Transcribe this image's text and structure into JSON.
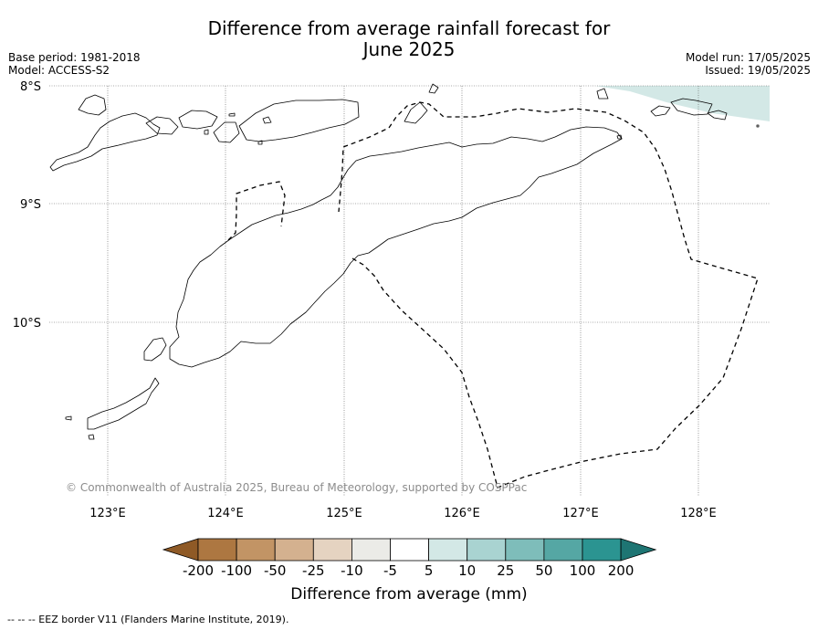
{
  "title_line1": "Difference from average rainfall forecast for",
  "title_line2": "June 2025",
  "meta": {
    "base_period": "Base period: 1981-2018",
    "model": "Model: ACCESS-S2",
    "model_run": "Model run: 17/05/2025",
    "issued": "Issued: 19/05/2025"
  },
  "map": {
    "lat_labels": [
      "8°S",
      "9°S",
      "10°S"
    ],
    "lon_labels": [
      "123°E",
      "124°E",
      "125°E",
      "126°E",
      "127°E",
      "128°E"
    ],
    "grid": true
  },
  "copyright": "© Commonwealth of Australia 2025, Bureau of Meteorology, supported by COSPPac",
  "colorbar": {
    "title": "Difference from average (mm)",
    "tick_labels": [
      "-200",
      "-100",
      "-50",
      "-25",
      "-10",
      "-5",
      "5",
      "10",
      "25",
      "50",
      "100",
      "200"
    ],
    "colors": [
      "#8f5a26",
      "#ad7741",
      "#c29465",
      "#d4b18f",
      "#e5d3c1",
      "#ebebe7",
      "#ffffff",
      "#d3e8e6",
      "#a9d3d1",
      "#7ebdba",
      "#55a7a4",
      "#2b9491",
      "#1e7573"
    ]
  },
  "footnote": "--  --  -- EEZ border V11 (Flanders Marine Institute, 2019)."
}
